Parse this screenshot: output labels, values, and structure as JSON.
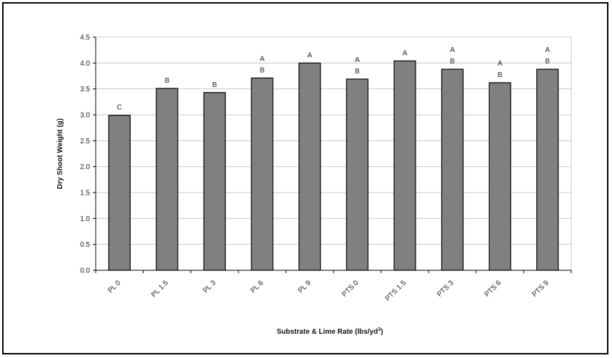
{
  "chart_data": {
    "type": "bar",
    "categories": [
      "PL 0",
      "PL 1.5",
      "PL 3",
      "PL 6",
      "PL 9",
      "PTS 0",
      "PTS 1.5",
      "PTS 3",
      "PTS 6",
      "PTS 9"
    ],
    "values": [
      2.99,
      3.51,
      3.43,
      3.71,
      4.0,
      3.69,
      4.04,
      3.88,
      3.62,
      3.88
    ],
    "significance": [
      [
        "C"
      ],
      [
        "B"
      ],
      [
        "B"
      ],
      [
        "A",
        "B"
      ],
      [
        "A"
      ],
      [
        "A",
        "B"
      ],
      [
        "A"
      ],
      [
        "A",
        "B"
      ],
      [
        "A",
        "B"
      ],
      [
        "A",
        "B"
      ]
    ],
    "title": "",
    "xlabel": "Substrate & Lime Rate (lbs/yd",
    "xlabel_superscript": "3",
    "xlabel_suffix": ")",
    "ylabel": "Dry Shoot Weight (g)",
    "ylim": [
      0,
      4.5
    ],
    "yticks": [
      "0.0",
      "0.5",
      "1.0",
      "1.5",
      "2.0",
      "2.5",
      "3.0",
      "3.5",
      "4.0",
      "4.5"
    ],
    "grid": true,
    "legend": "none",
    "bar_color": "#808080",
    "grid_color": "#c8c8c8"
  }
}
